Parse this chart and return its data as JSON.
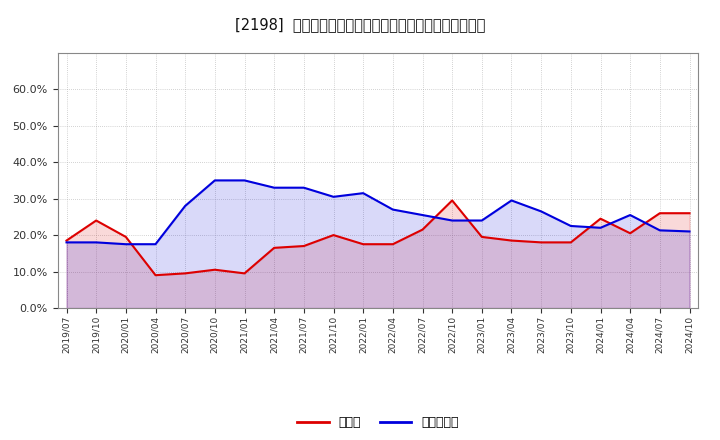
{
  "title": "[2198]  現頒金、有利子負債の総資産に対する比率の推移",
  "cash_label": "現頒金",
  "debt_label": "有利子負債",
  "cash_color": "#dd0000",
  "debt_color": "#0000dd",
  "bg_color": "#ffffff",
  "ylim": [
    0.0,
    0.7
  ],
  "yticks": [
    0.0,
    0.1,
    0.2,
    0.3,
    0.4,
    0.5,
    0.6
  ],
  "dates": [
    "2019/07",
    "2019/10",
    "2020/01",
    "2020/04",
    "2020/07",
    "2020/10",
    "2021/01",
    "2021/04",
    "2021/07",
    "2021/10",
    "2022/01",
    "2022/04",
    "2022/07",
    "2022/10",
    "2023/01",
    "2023/04",
    "2023/07",
    "2023/10",
    "2024/01",
    "2024/04",
    "2024/07",
    "2024/10"
  ],
  "cash_values": [
    0.185,
    0.24,
    0.195,
    0.09,
    0.095,
    0.105,
    0.095,
    0.165,
    0.17,
    0.2,
    0.175,
    0.175,
    0.215,
    0.295,
    0.195,
    0.185,
    0.18,
    0.18,
    0.245,
    0.205,
    0.26,
    0.26
  ],
  "debt_values": [
    0.18,
    0.18,
    0.175,
    0.175,
    0.28,
    0.35,
    0.35,
    0.33,
    0.33,
    0.305,
    0.315,
    0.27,
    0.255,
    0.24,
    0.24,
    0.295,
    0.265,
    0.225,
    0.22,
    0.255,
    0.213,
    0.21
  ]
}
